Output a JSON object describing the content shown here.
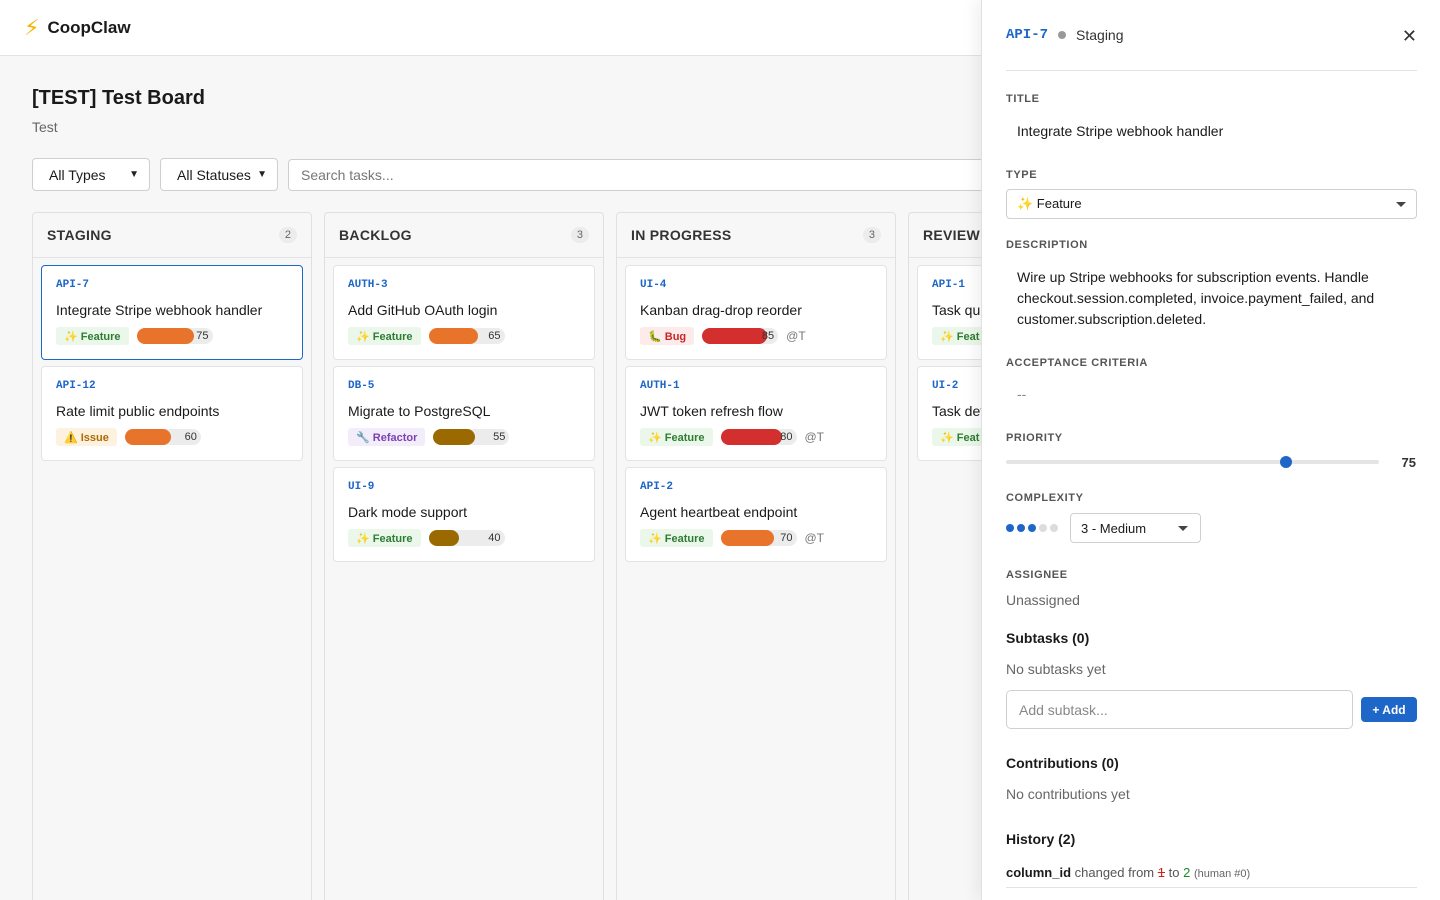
{
  "app": {
    "name": "CoopClaw",
    "logo_icon": "⚡"
  },
  "board": {
    "title": "[TEST] Test Board",
    "subtitle": "Test"
  },
  "filters": {
    "types": "All Types",
    "statuses": "All Statuses",
    "search_placeholder": "Search tasks..."
  },
  "columns": [
    {
      "name": "STAGING",
      "count": "2",
      "cards": [
        {
          "id": "API-7",
          "title": "Integrate Stripe webhook handler",
          "type": "✨ Feature",
          "type_kind": "feature",
          "priority": "75",
          "assignee": "",
          "selected": true
        },
        {
          "id": "API-12",
          "title": "Rate limit public endpoints",
          "type": "⚠️ Issue",
          "type_kind": "issue",
          "priority": "60",
          "assignee": ""
        }
      ]
    },
    {
      "name": "BACKLOG",
      "count": "3",
      "cards": [
        {
          "id": "AUTH-3",
          "title": "Add GitHub OAuth login",
          "type": "✨ Feature",
          "type_kind": "feature",
          "priority": "65",
          "assignee": ""
        },
        {
          "id": "DB-5",
          "title": "Migrate to PostgreSQL",
          "type": "🔧 Refactor",
          "type_kind": "refactor",
          "priority": "55",
          "assignee": ""
        },
        {
          "id": "UI-9",
          "title": "Dark mode support",
          "type": "✨ Feature",
          "type_kind": "feature",
          "priority": "40",
          "assignee": ""
        }
      ]
    },
    {
      "name": "IN PROGRESS",
      "count": "3",
      "cards": [
        {
          "id": "UI-4",
          "title": "Kanban drag-drop reorder",
          "type": "🐛 Bug",
          "type_kind": "bug",
          "priority": "85",
          "assignee": "@T"
        },
        {
          "id": "AUTH-1",
          "title": "JWT token refresh flow",
          "type": "✨ Feature",
          "type_kind": "feature",
          "priority": "80",
          "assignee": "@T"
        },
        {
          "id": "API-2",
          "title": "Agent heartbeat endpoint",
          "type": "✨ Feature",
          "type_kind": "feature",
          "priority": "70",
          "assignee": "@T"
        }
      ]
    },
    {
      "name": "REVIEW",
      "count": "",
      "cards": [
        {
          "id": "API-1",
          "title": "Task qu",
          "type": "✨ Feat",
          "type_kind": "feature",
          "priority": "",
          "assignee": ""
        },
        {
          "id": "UI-2",
          "title": "Task det",
          "type": "✨ Feat",
          "type_kind": "feature",
          "priority": "",
          "assignee": ""
        }
      ]
    }
  ],
  "colors": {
    "accent": "#1e66c8",
    "feature_bg": "#eaf7ea",
    "feature_fg": "#2e7d32",
    "issue_bg": "#fdf2e0",
    "issue_fg": "#b06a00",
    "bug_bg": "#fdeaea",
    "bug_fg": "#c62828",
    "refactor_bg": "#f3ecfa",
    "refactor_fg": "#7b42b0",
    "priority_high": "#d32f2f",
    "priority_mid": "#e8732a",
    "priority_low": "#9a6a00"
  },
  "detail": {
    "id": "API-7",
    "status": "Staging",
    "close_icon": "✕",
    "labels": {
      "title": "TITLE",
      "type": "TYPE",
      "description": "DESCRIPTION",
      "acceptance": "ACCEPTANCE CRITERIA",
      "priority": "PRIORITY",
      "complexity": "COMPLEXITY",
      "assignee": "ASSIGNEE"
    },
    "title": "Integrate Stripe webhook handler",
    "type": "✨ Feature",
    "description": "Wire up Stripe webhooks for subscription events. Handle checkout.session.completed, invoice.payment_failed, and customer.subscription.deleted.",
    "acceptance": "--",
    "priority": "75",
    "priority_max": 100,
    "complexity_value": 3,
    "complexity_max": 5,
    "complexity_label": "3 - Medium",
    "assignee": "Unassigned",
    "subtasks_title": "Subtasks (0)",
    "subtasks_empty": "No subtasks yet",
    "subtask_placeholder": "Add subtask...",
    "add_label": "+ Add",
    "contributions_title": "Contributions (0)",
    "contributions_empty": "No contributions yet",
    "history_title": "History (2)",
    "history": [
      {
        "field": "column_id",
        "changed_from": "changed from",
        "from": "1",
        "to_word": "to",
        "to": "2",
        "by": "(human #0)"
      }
    ]
  }
}
